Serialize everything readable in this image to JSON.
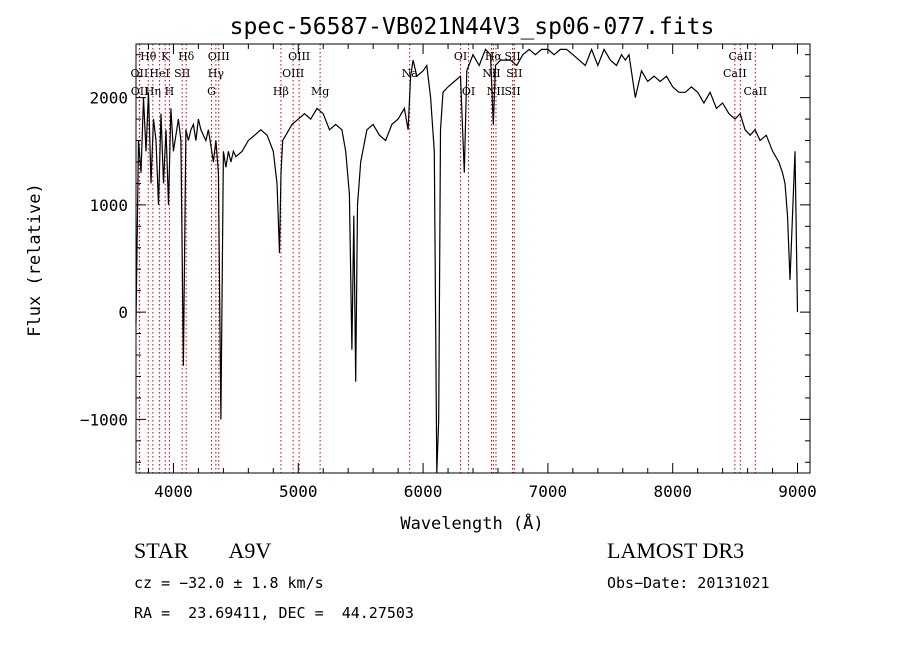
{
  "chart_data": {
    "type": "line",
    "title": "spec-56587-VB021N44V3_sp06-077.fits",
    "xlabel": "Wavelength (Å)",
    "ylabel": "Flux (relative)",
    "xlim": [
      3700,
      9100
    ],
    "ylim": [
      -1500,
      2500
    ],
    "x_ticks": [
      4000,
      5000,
      6000,
      7000,
      8000,
      9000
    ],
    "y_ticks": [
      -1000,
      0,
      1000,
      2000
    ],
    "x_tick_labels": [
      "4000",
      "5000",
      "6000",
      "7000",
      "8000",
      "9000"
    ],
    "y_tick_labels": [
      "−1000",
      "0",
      "1000",
      "2000"
    ],
    "grid": false,
    "line_color": "#000000",
    "marker_color": "#cc0000",
    "series": [
      {
        "x": [
          3700,
          3720,
          3740,
          3760,
          3780,
          3800,
          3820,
          3840,
          3860,
          3880,
          3900,
          3920,
          3940,
          3960,
          3980,
          4000,
          4020,
          4040,
          4060,
          4080,
          4100,
          4120,
          4140,
          4160,
          4180,
          4200,
          4220,
          4240,
          4260,
          4280,
          4300,
          4320,
          4340,
          4360,
          4380,
          4400,
          4420,
          4440,
          4460,
          4480,
          4500,
          4550,
          4600,
          4650,
          4700,
          4750,
          4800,
          4830,
          4850,
          4862,
          4875,
          4900,
          4950,
          5000,
          5050,
          5100,
          5150,
          5200,
          5250,
          5300,
          5350,
          5380,
          5410,
          5430,
          5445,
          5460,
          5475,
          5500,
          5550,
          5600,
          5650,
          5700,
          5750,
          5800,
          5850,
          5880,
          5900,
          5920,
          5950,
          6000,
          6030,
          6060,
          6090,
          6110,
          6125,
          6140,
          6160,
          6200,
          6250,
          6300,
          6330,
          6350,
          6400,
          6450,
          6500,
          6540,
          6563,
          6580,
          6620,
          6660,
          6700,
          6750,
          6800,
          6850,
          6900,
          6950,
          7000,
          7050,
          7100,
          7150,
          7200,
          7250,
          7300,
          7350,
          7400,
          7450,
          7500,
          7550,
          7590,
          7620,
          7650,
          7700,
          7750,
          7800,
          7850,
          7900,
          7950,
          8000,
          8050,
          8100,
          8150,
          8200,
          8250,
          8300,
          8350,
          8400,
          8450,
          8500,
          8540,
          8580,
          8620,
          8660,
          8700,
          8750,
          8800,
          8850,
          8880,
          8900,
          8920,
          8940,
          8960,
          8980,
          9000
        ],
        "values": [
          -100,
          1600,
          1300,
          2000,
          1500,
          2050,
          1200,
          1800,
          1600,
          1000,
          1850,
          1200,
          1700,
          1000,
          1900,
          1500,
          1650,
          1800,
          1600,
          -500,
          1700,
          1600,
          1700,
          1750,
          1600,
          1800,
          1700,
          1650,
          1600,
          1700,
          1550,
          1400,
          1600,
          1300,
          -1000,
          1500,
          1350,
          1500,
          1400,
          1500,
          1450,
          1500,
          1600,
          1650,
          1700,
          1650,
          1500,
          1200,
          550,
          1300,
          1600,
          1650,
          1750,
          1800,
          1850,
          1800,
          1900,
          1850,
          1700,
          1750,
          1700,
          1500,
          1100,
          -350,
          900,
          -650,
          1000,
          1400,
          1700,
          1750,
          1650,
          1600,
          1750,
          1800,
          1900,
          1700,
          2200,
          2350,
          2200,
          2250,
          2300,
          2000,
          1500,
          -1500,
          -1000,
          1700,
          2050,
          2100,
          2150,
          2200,
          1300,
          2250,
          2400,
          2300,
          2450,
          2400,
          1750,
          2300,
          2350,
          2350,
          2350,
          2300,
          2400,
          2450,
          2400,
          2450,
          2450,
          2400,
          2450,
          2450,
          2400,
          2350,
          2300,
          2450,
          2300,
          2450,
          2350,
          2300,
          2400,
          2350,
          2400,
          2000,
          2250,
          2150,
          2200,
          2150,
          2200,
          2100,
          2050,
          2050,
          2100,
          2050,
          1950,
          2050,
          1900,
          1950,
          1850,
          1800,
          1850,
          1700,
          1650,
          1700,
          1600,
          1650,
          1500,
          1400,
          1300,
          1200,
          900,
          300,
          900,
          1500,
          0
        ]
      }
    ],
    "lines": [
      {
        "label": "Hθ",
        "x": 3798,
        "row": 0
      },
      {
        "label": "OII",
        "x": 3727,
        "row": 1
      },
      {
        "label": "OII",
        "x": 3729,
        "row": 2
      },
      {
        "label": "Hη",
        "x": 3835,
        "row": 2
      },
      {
        "label": "K",
        "x": 3934,
        "row": 0
      },
      {
        "label": "H",
        "x": 3968,
        "row": 2
      },
      {
        "label": "HeI",
        "x": 3889,
        "row": 1
      },
      {
        "label": "SII",
        "x": 4070,
        "row": 1
      },
      {
        "label": "Hδ",
        "x": 4102,
        "row": 0
      },
      {
        "label": "OIII",
        "x": 4363,
        "row": 0
      },
      {
        "label": "Hγ",
        "x": 4340,
        "row": 1
      },
      {
        "label": "G",
        "x": 4305,
        "row": 2
      },
      {
        "label": "Hβ",
        "x": 4861,
        "row": 2
      },
      {
        "label": "OIII",
        "x": 5007,
        "row": 0
      },
      {
        "label": "OIII",
        "x": 4959,
        "row": 1
      },
      {
        "label": "Mg",
        "x": 5175,
        "row": 2
      },
      {
        "label": "Na",
        "x": 5893,
        "row": 1
      },
      {
        "label": "OI",
        "x": 6300,
        "row": 0
      },
      {
        "label": "OI",
        "x": 6364,
        "row": 2
      },
      {
        "label": "Hα",
        "x": 6563,
        "row": 0
      },
      {
        "label": "NII",
        "x": 6548,
        "row": 1
      },
      {
        "label": "NII",
        "x": 6584,
        "row": 2
      },
      {
        "label": "SII",
        "x": 6717,
        "row": 0
      },
      {
        "label": "SII",
        "x": 6731,
        "row": 1
      },
      {
        "label": "SII",
        "x": 6717,
        "row": 2
      },
      {
        "label": "CaII",
        "x": 8542,
        "row": 0
      },
      {
        "label": "CaII",
        "x": 8498,
        "row": 1
      },
      {
        "label": "CaII",
        "x": 8662,
        "row": 2
      }
    ]
  },
  "info": {
    "class_label": "STAR",
    "subclass": "A9V",
    "survey": "LAMOST DR3",
    "cz": "cz = −32.0 ± 1.8 km/s",
    "obs_date": "Obs−Date: 20131021",
    "radec": "RA =  23.69411, DEC =  44.27503"
  }
}
